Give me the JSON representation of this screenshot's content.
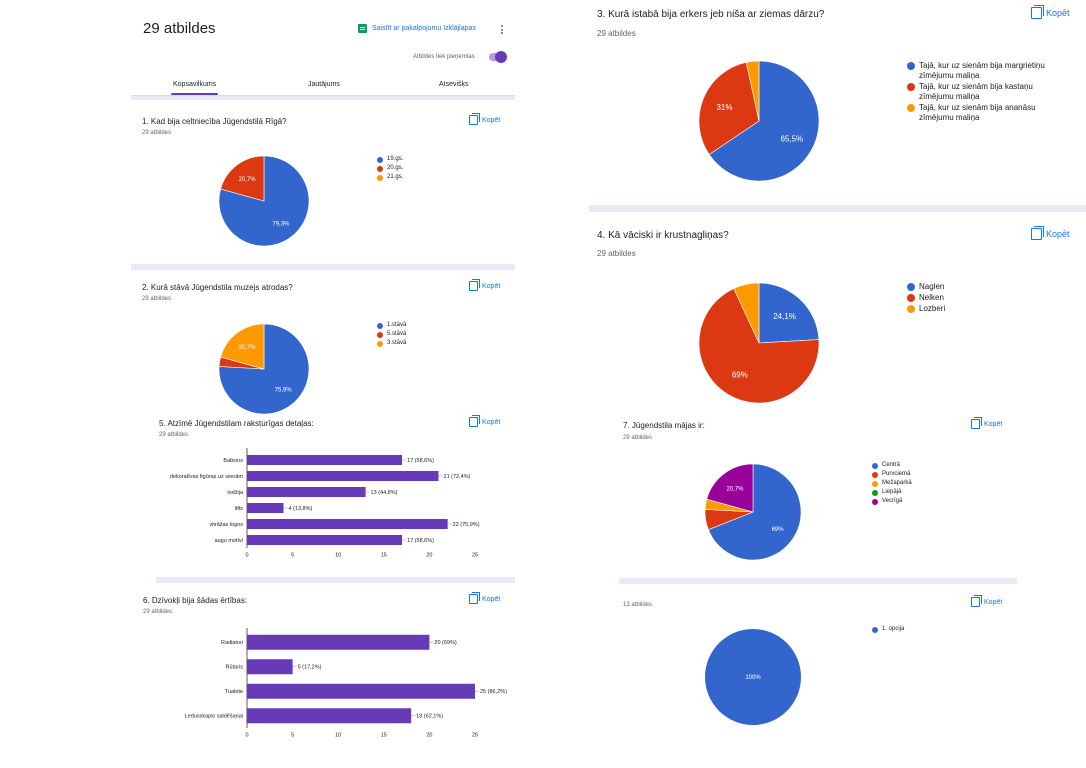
{
  "header": {
    "response_count_title": "29 atbildes",
    "sheets_link": "Saistīt ar pakalpojumu Izklājlapas",
    "accepting_label": "Atbildes tiek pieņemtas",
    "tabs": [
      "Kopsavilkums",
      "Jautājums",
      "Atsevišķs"
    ]
  },
  "copy_label": "Kopēt",
  "questions": {
    "q1": {
      "title": "1. Kad bija celtniecība Jūgendstilā Rīgā?",
      "count": "29 atbildes",
      "legend": [
        "19.gs.",
        "20.gs.",
        "21.gs."
      ],
      "chart_data": {
        "type": "pie",
        "labels": [
          "19.gs.",
          "20.gs.",
          "21.gs."
        ],
        "values": [
          79.3,
          20.7,
          0
        ],
        "value_labels": [
          "79,3%",
          "20,7%",
          ""
        ],
        "colors": [
          "#3366cc",
          "#dc3912",
          "#ff9900"
        ]
      }
    },
    "q2": {
      "title": "2. Kurā stāvā Jūgendstila muzejs atrodas?",
      "count": "29 atbildes",
      "legend": [
        "1.stāvā",
        "5.stāvā",
        "3.stāvā"
      ],
      "chart_data": {
        "type": "pie",
        "labels": [
          "1.stāvā",
          "5.stāvā",
          "3.stāvā"
        ],
        "values": [
          75.9,
          3.4,
          20.7
        ],
        "value_labels": [
          "75,9%",
          "",
          "20,7%"
        ],
        "colors": [
          "#3366cc",
          "#dc3912",
          "#ff9900"
        ]
      }
    },
    "q3": {
      "title": "3. Kurā istabā bija erkers jeb niša ar ziemas dārzu?",
      "count": "29 atbildes",
      "legend": [
        "Tajā, kur uz sienām bija margrietiņu zīmējumu maliņa",
        "Tajā, kur uz sienām bija kastaņu zīmējumu maliņa",
        "Tajā, kur uz sienām bija ananāsu zīmējumu maliņa"
      ],
      "chart_data": {
        "type": "pie",
        "labels": [
          "Tajā, kur uz sienām bija margrietiņu zīmējumu maliņa",
          "Tajā, kur uz sienām bija kastaņu zīmējumu maliņa",
          "Tajā, kur uz sienām bija ananāsu zīmējumu maliņa"
        ],
        "values": [
          65.5,
          31,
          3.4
        ],
        "value_labels": [
          "65,5%",
          "31%",
          ""
        ],
        "colors": [
          "#3366cc",
          "#dc3912",
          "#ff9900"
        ]
      }
    },
    "q4": {
      "title": "4. Kā vāciski ir krustnagliņas?",
      "count": "29 atbildes",
      "legend": [
        "Naglen",
        "Nelken",
        "Lozberi"
      ],
      "chart_data": {
        "type": "pie",
        "labels": [
          "Naglen",
          "Nelken",
          "Lozberi"
        ],
        "values": [
          24.1,
          69,
          6.9
        ],
        "value_labels": [
          "24,1%",
          "69%",
          ""
        ],
        "colors": [
          "#3366cc",
          "#dc3912",
          "#ff9900"
        ]
      }
    },
    "q5": {
      "title": "5. Atzīmē Jūgendstilam raksturīgas detaļas:",
      "count": "29 atbildes",
      "chart_data": {
        "type": "bar",
        "categories": [
          "Balkons",
          "dekoratīvas figūras uz sienām",
          "lodžija",
          "lifts",
          "vitrāžas logos",
          "augu motīvi"
        ],
        "values": [
          17,
          21,
          13,
          4,
          22,
          17
        ],
        "value_labels": [
          "17 (58,6%)",
          "21 (72,4%)",
          "13 (44,8%)",
          "4 (13,8%)",
          "22 (75,9%)",
          "17 (58,6%)"
        ],
        "xticks": [
          "0",
          "5",
          "10",
          "15",
          "20",
          "25"
        ],
        "xlim": [
          0,
          25
        ],
        "color": "#673ab7"
      }
    },
    "q6": {
      "title": "6. Dzīvokļi bija šādas ērtības:",
      "count": "29 atbildes",
      "chart_data": {
        "type": "bar",
        "categories": [
          "Radiatori",
          "Rūtaris",
          "Tualete",
          "Ledusskapis saldēšanai"
        ],
        "values": [
          20,
          5,
          25,
          18
        ],
        "value_labels": [
          "20 (69%)",
          "5 (17,2%)",
          "25 (86,2%)",
          "18 (62,1%)"
        ],
        "xticks": [
          "0",
          "5",
          "10",
          "15",
          "20",
          "25"
        ],
        "xlim": [
          0,
          25
        ],
        "color": "#673ab7"
      }
    },
    "q7": {
      "title": "7. Jūgendstila mājas ir:",
      "count": "29 atbildes",
      "legend": [
        "Centrā",
        "Purvciemā",
        "Mežaparkā",
        "Liepājā",
        "Vecrīgā"
      ],
      "chart_data": {
        "type": "pie",
        "labels": [
          "Centrā",
          "Purvciemā",
          "Mežaparkā",
          "Liepājā",
          "Vecrīgā"
        ],
        "values": [
          69,
          6.9,
          3.4,
          0,
          20.7
        ],
        "value_labels": [
          "69%",
          "",
          "",
          "",
          "20,7%"
        ],
        "colors": [
          "#3366cc",
          "#dc3912",
          "#ff9900",
          "#109618",
          "#990099"
        ]
      }
    },
    "q8": {
      "count": "13 atbildes",
      "legend": [
        "1. opcija"
      ],
      "chart_data": {
        "type": "pie",
        "labels": [
          "1. opcija"
        ],
        "values": [
          100
        ],
        "value_labels": [
          "100%"
        ],
        "colors": [
          "#3366cc"
        ]
      }
    }
  }
}
